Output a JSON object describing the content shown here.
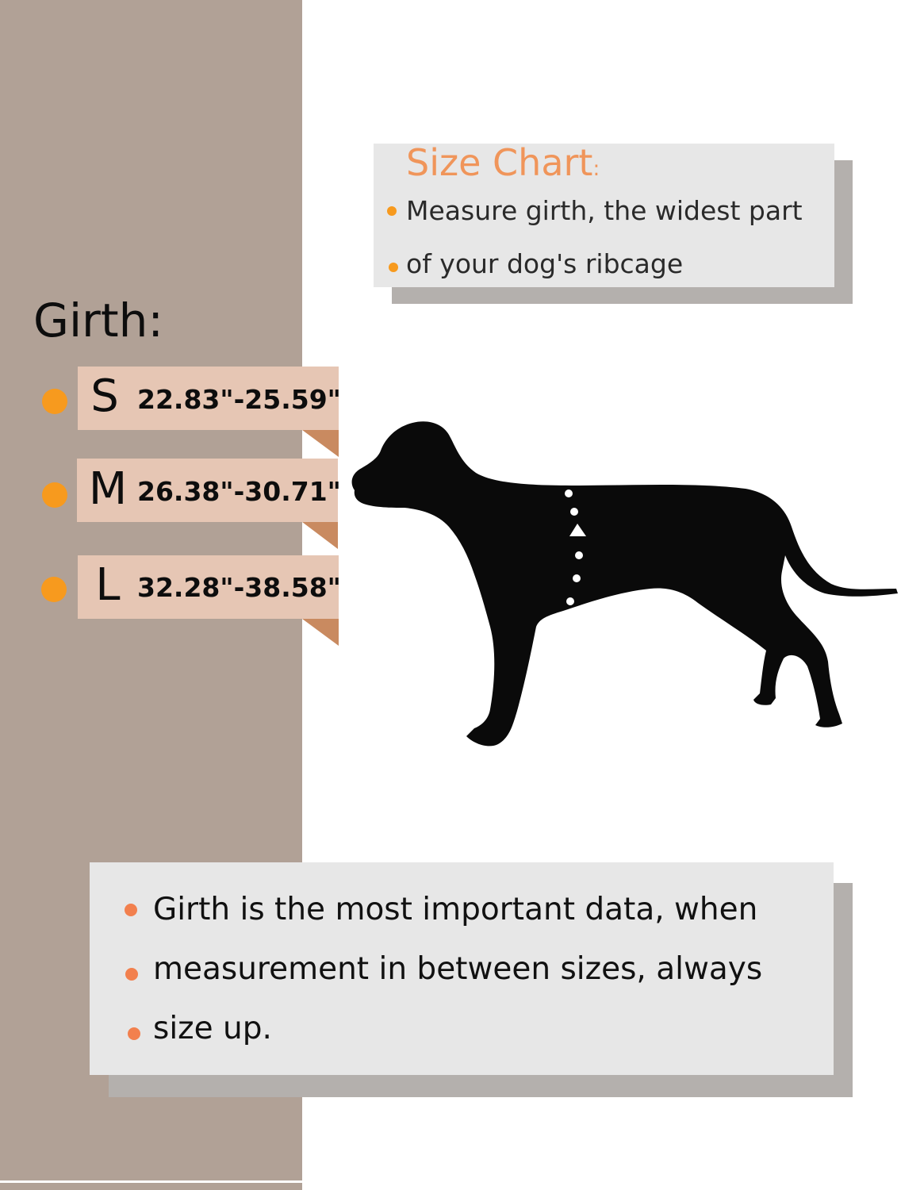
{
  "size_chart": {
    "title": "Size Chart",
    "title_colon": ":",
    "lines": [
      "Measure girth, the widest part",
      "of your dog's ribcage"
    ]
  },
  "girth": {
    "heading": "Girth:",
    "sizes": [
      {
        "letter": "S",
        "range": "22.83\"-25.59\""
      },
      {
        "letter": "M",
        "range": "26.38\"-30.71\""
      },
      {
        "letter": "L",
        "range": "32.28\"-38.58\""
      }
    ]
  },
  "note": {
    "lines": [
      "Girth is the most important data, when",
      "measurement in between sizes, always",
      "size up."
    ]
  },
  "colors": {
    "panel": "#b1a196",
    "accent_orange": "#f79a1e",
    "title_orange": "#f0955a",
    "tag_fill": "#e6c6b4",
    "tag_fold": "#c98a60",
    "card_fill": "#e7e7e7",
    "card_shadow": "#b4b0ad",
    "dog_silhouette": "#0a0a0a"
  },
  "icons": {
    "dog": "dog-silhouette-icon",
    "measure_marker": "measure-arrow-icon"
  }
}
